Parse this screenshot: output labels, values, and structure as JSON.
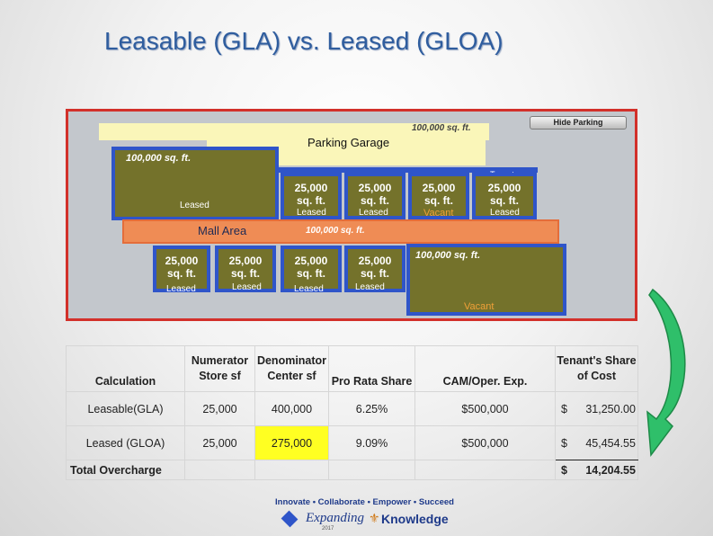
{
  "title": "Leasable (GLA) vs. Leased (GLOA)",
  "diagram": {
    "hide_button": "Hide Parking",
    "parking": {
      "label": "Parking Garage",
      "area": "100,000 sq. ft."
    },
    "anchor_top": {
      "area": "100,000 sq. ft.",
      "status": "Leased"
    },
    "tenant_label": "Tenant",
    "top_stores": [
      {
        "area": "25,000",
        "unit": "sq. ft.",
        "status": "Leased"
      },
      {
        "area": "25,000",
        "unit": "sq. ft.",
        "status": "Leased"
      },
      {
        "area": "25,000",
        "unit": "sq. ft.",
        "status": "Vacant"
      },
      {
        "area": "25,000",
        "unit": "sq. ft.",
        "status": "Leased"
      }
    ],
    "mall": {
      "label": "Mall Area",
      "area": "100,000 sq. ft."
    },
    "bottom_stores": [
      {
        "area": "25,000",
        "unit": "sq. ft.",
        "status": "Leased"
      },
      {
        "area": "25,000",
        "unit": "sq. ft.",
        "status": "Leased"
      },
      {
        "area": "25,000",
        "unit": "sq. ft.",
        "status": "Leased"
      },
      {
        "area": "25,000",
        "unit": "sq. ft.",
        "status": "Leased"
      }
    ],
    "anchor_bottom": {
      "area": "100,000 sq. ft.",
      "status": "Vacant"
    }
  },
  "table": {
    "headers": {
      "calc": "Calculation",
      "num1": "Numerator",
      "num2": "Store sf",
      "den1": "Denominator",
      "den2": "Center sf",
      "pro": "Pro Rata Share",
      "cam": "CAM/Oper. Exp.",
      "share1": "Tenant's Share",
      "share2": "of Cost"
    },
    "rows": [
      {
        "calc": "Leasable(GLA)",
        "num": "25,000",
        "den": "400,000",
        "pro": "6.25%",
        "cam": "$500,000",
        "cur": "$",
        "share": "31,250.00"
      },
      {
        "calc": "Leased (GLOA)",
        "num": "25,000",
        "den": "275,000",
        "pro": "9.09%",
        "cam": "$500,000",
        "cur": "$",
        "share": "45,454.55"
      }
    ],
    "total": {
      "label": "Total Overcharge",
      "cur": "$",
      "value": "14,204.55"
    }
  },
  "logo": {
    "line1": "Innovate • Collaborate • Empower • Succeed",
    "word1": "Expanding",
    "word2": "Knowledge",
    "year": "2017"
  },
  "colors": {
    "frame": "#d2302a",
    "store_border": "#2f55c9",
    "store_fill": "#74722b",
    "mall": "#ef8c55",
    "parking": "#faf6b9",
    "arrow": "#2fbf6a",
    "highlight": "#ffff22"
  }
}
